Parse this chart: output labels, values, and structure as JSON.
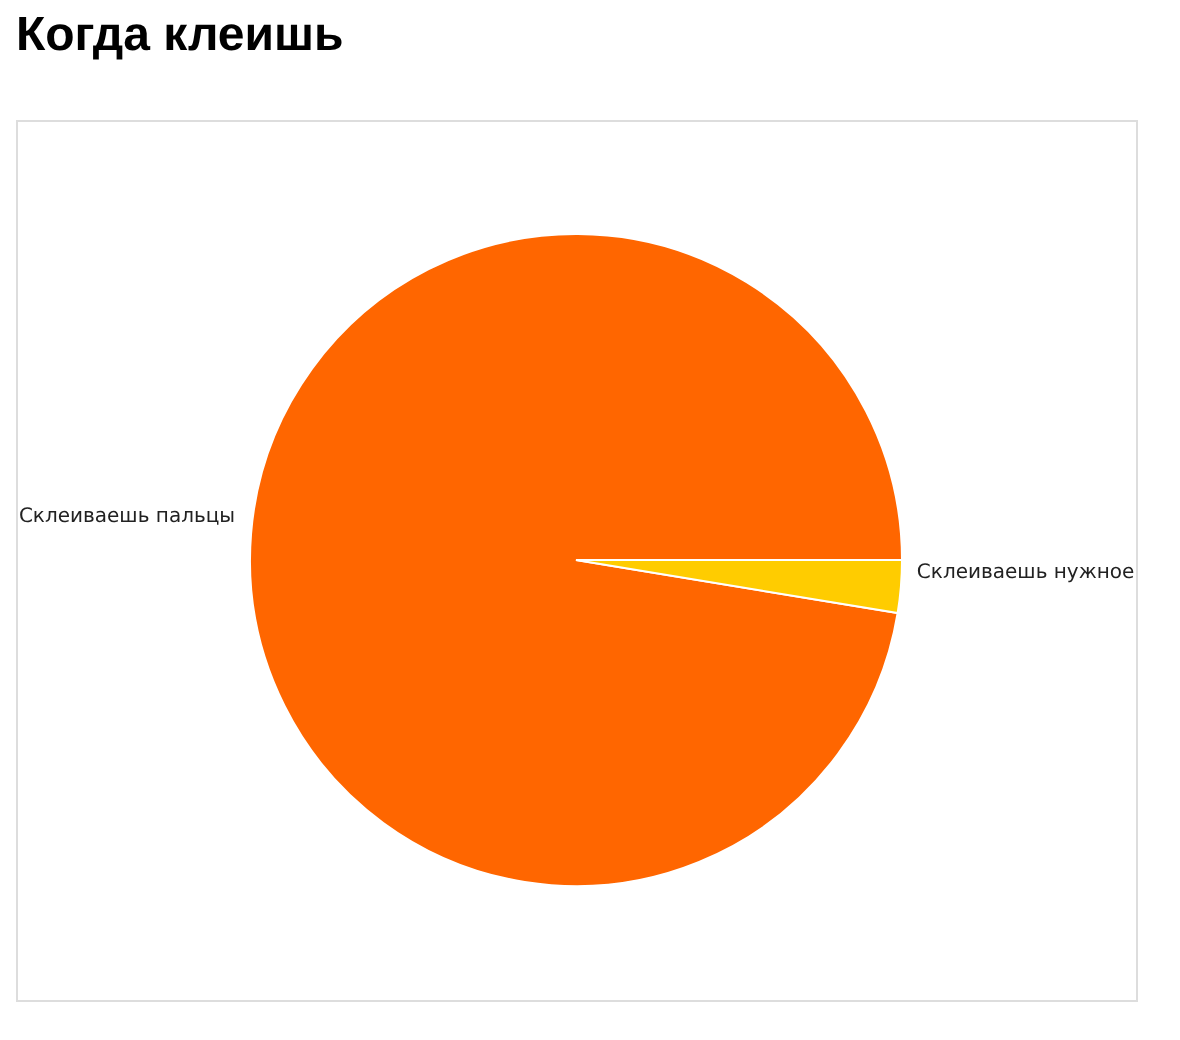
{
  "chart_data": {
    "type": "pie",
    "title": "Когда клеишь",
    "categories": [
      "Склеиваешь пальцы",
      "Склеиваешь нужное"
    ],
    "values": [
      97.4,
      2.6
    ],
    "colors": [
      "#ff6600",
      "#ffcc00"
    ]
  }
}
